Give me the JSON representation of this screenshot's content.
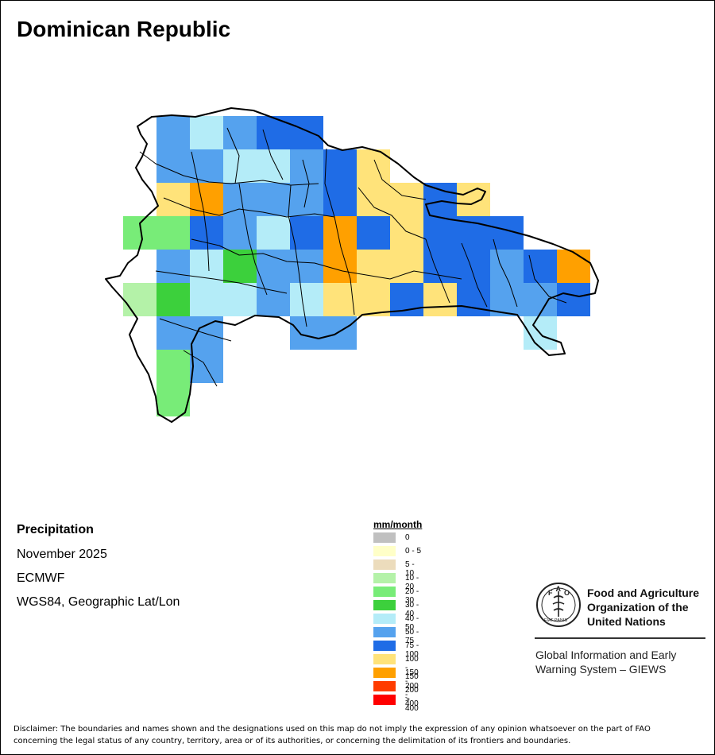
{
  "map": {
    "title": "Dominican Republic",
    "variable": "Precipitation",
    "period": "November 2025",
    "source": "ECMWF",
    "projection": "WGS84, Geographic Lat/Lon"
  },
  "legend": {
    "title": "mm/month",
    "classes": [
      {
        "label": "0",
        "color": "#c0c0c0"
      },
      {
        "label": "0 - 5",
        "color": "#ffffc8"
      },
      {
        "label": "5 - 10",
        "color": "#ecdcbc"
      },
      {
        "label": "10 - 20",
        "color": "#b4f2a8"
      },
      {
        "label": "20 - 30",
        "color": "#78ec78"
      },
      {
        "label": "30 - 40",
        "color": "#3cd03c"
      },
      {
        "label": "40 - 50",
        "color": "#b4ecf8"
      },
      {
        "label": "50 - 75",
        "color": "#55a2ee"
      },
      {
        "label": "75 - 100",
        "color": "#1f6ce6"
      },
      {
        "label": "100 - 150",
        "color": "#ffe37a"
      },
      {
        "label": "150 - 200",
        "color": "#ffa000"
      },
      {
        "label": "200 - 400",
        "color": "#ff3c00"
      },
      {
        "label": "> 400",
        "color": "#ff0000"
      }
    ]
  },
  "grid": {
    "columns": 15,
    "rows": 9,
    "cell_class": [
      [
        -1,
        7,
        6,
        7,
        8,
        8,
        -1,
        -1,
        -1,
        -1,
        -1,
        -1,
        -1,
        -1,
        -1
      ],
      [
        -1,
        7,
        7,
        6,
        6,
        7,
        8,
        9,
        -1,
        -1,
        -1,
        -1,
        -1,
        -1,
        -1
      ],
      [
        -1,
        9,
        10,
        7,
        7,
        7,
        8,
        9,
        9,
        8,
        9,
        -1,
        -1,
        -1,
        -1
      ],
      [
        4,
        4,
        8,
        7,
        6,
        8,
        10,
        8,
        9,
        8,
        8,
        8,
        -1,
        -1,
        -1
      ],
      [
        -1,
        7,
        6,
        5,
        7,
        7,
        10,
        9,
        9,
        8,
        8,
        7,
        8,
        10,
        -1
      ],
      [
        3,
        5,
        6,
        6,
        7,
        6,
        9,
        9,
        8,
        9,
        8,
        7,
        7,
        8,
        -1
      ],
      [
        -1,
        7,
        7,
        -1,
        -1,
        7,
        7,
        -1,
        -1,
        -1,
        -1,
        -1,
        6,
        -1,
        -1
      ],
      [
        -1,
        4,
        7,
        -1,
        -1,
        -1,
        -1,
        -1,
        -1,
        -1,
        -1,
        -1,
        -1,
        -1,
        -1
      ],
      [
        -1,
        4,
        -1,
        -1,
        -1,
        -1,
        -1,
        -1,
        -1,
        -1,
        -1,
        -1,
        -1,
        -1,
        -1
      ]
    ]
  },
  "logo": {
    "emblem_letters": "FAO",
    "emblem_motto": "FIAT PANIS",
    "org_name_lines": [
      "Food and Agriculture",
      "Organization of the",
      "United Nations"
    ],
    "giews_lines": [
      "Global Information and Early",
      "Warning System – GIEWS"
    ]
  },
  "disclaimer": "Disclaimer: The boundaries and names shown and the designations used on this map do not imply the expression of any opinion whatsoever on the part of FAO concerning the legal status of any country, territory, area or of its authorities, or concerning the delimitation of its frontiers and boundaries.",
  "icons": {
    "logo": "fao-emblem-icon"
  }
}
